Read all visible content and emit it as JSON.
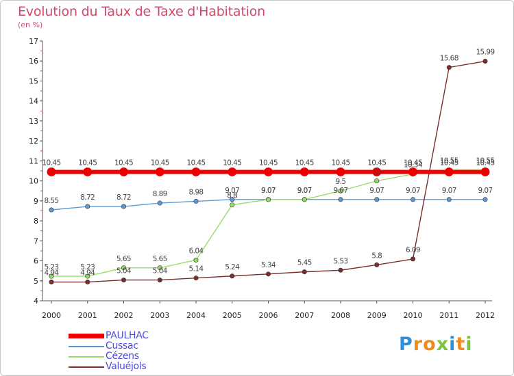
{
  "title": "Evolution du Taux de Taxe d'Habitation",
  "subtitle": "(en %)",
  "logo": {
    "letters": [
      "P",
      "r",
      "o",
      "x",
      "i",
      "t",
      "i"
    ],
    "colors": [
      "#2e8fd8",
      "#f08a1c",
      "#f08a1c",
      "#7cc242",
      "#2e8fd8",
      "#f08a1c",
      "#7cc242"
    ]
  },
  "chart_data": {
    "type": "line",
    "x": [
      "2000",
      "2001",
      "2002",
      "2003",
      "2004",
      "2005",
      "2006",
      "2007",
      "2008",
      "2009",
      "2010",
      "2011",
      "2012"
    ],
    "ylim": [
      4,
      17
    ],
    "yticks": [
      "4",
      "5",
      "6",
      "7",
      "8",
      "9",
      "10",
      "11",
      "12",
      "13",
      "14",
      "15",
      "16",
      "17"
    ],
    "legend_position": "bottom-left",
    "series": [
      {
        "name": "PAULHAC",
        "color": "#ee0000",
        "values": [
          10.45,
          10.45,
          10.45,
          10.45,
          10.45,
          10.45,
          10.45,
          10.45,
          10.45,
          10.45,
          10.45,
          10.45,
          10.45
        ],
        "labels": [
          "10.45",
          "10.45",
          "10.45",
          "10.45",
          "10.45",
          "10.45",
          "10.45",
          "10.45",
          "10.45",
          "10.45",
          "10.45",
          "10.45",
          "10.45"
        ]
      },
      {
        "name": "Cussac",
        "color": "#5b9bd5",
        "values": [
          8.55,
          8.72,
          8.72,
          8.89,
          8.98,
          9.07,
          9.07,
          9.07,
          9.07,
          9.07,
          9.07,
          9.07,
          9.07
        ],
        "labels": [
          "8.55",
          "8.72",
          "8.72",
          "8.89",
          "8.98",
          "9.07",
          "9.07",
          "9.07",
          "9.07",
          "9.07",
          "9.07",
          "9.07",
          "9.07"
        ]
      },
      {
        "name": "Cézens",
        "color": "#99dd66",
        "values": [
          5.23,
          5.23,
          5.65,
          5.65,
          6.04,
          8.8,
          9.07,
          9.07,
          9.5,
          10.0,
          10.34,
          10.55,
          10.55
        ],
        "labels": [
          "5.23",
          "5.23",
          "5.65",
          "5.65",
          "6.04",
          "8.8",
          "9.07",
          "9.07",
          "9.5",
          "10",
          "10.34",
          "10.55",
          "10.55"
        ]
      },
      {
        "name": "Valuéjols",
        "color": "#7b2e2e",
        "values": [
          4.94,
          4.94,
          5.04,
          5.04,
          5.14,
          5.24,
          5.34,
          5.45,
          5.53,
          5.8,
          6.09,
          15.68,
          15.99
        ],
        "labels": [
          "4.94",
          "4.94",
          "5.04",
          "5.04",
          "5.14",
          "5.24",
          "5.34",
          "5.45",
          "5.53",
          "5.8",
          "6.09",
          "15.68",
          "15.99"
        ]
      }
    ]
  }
}
